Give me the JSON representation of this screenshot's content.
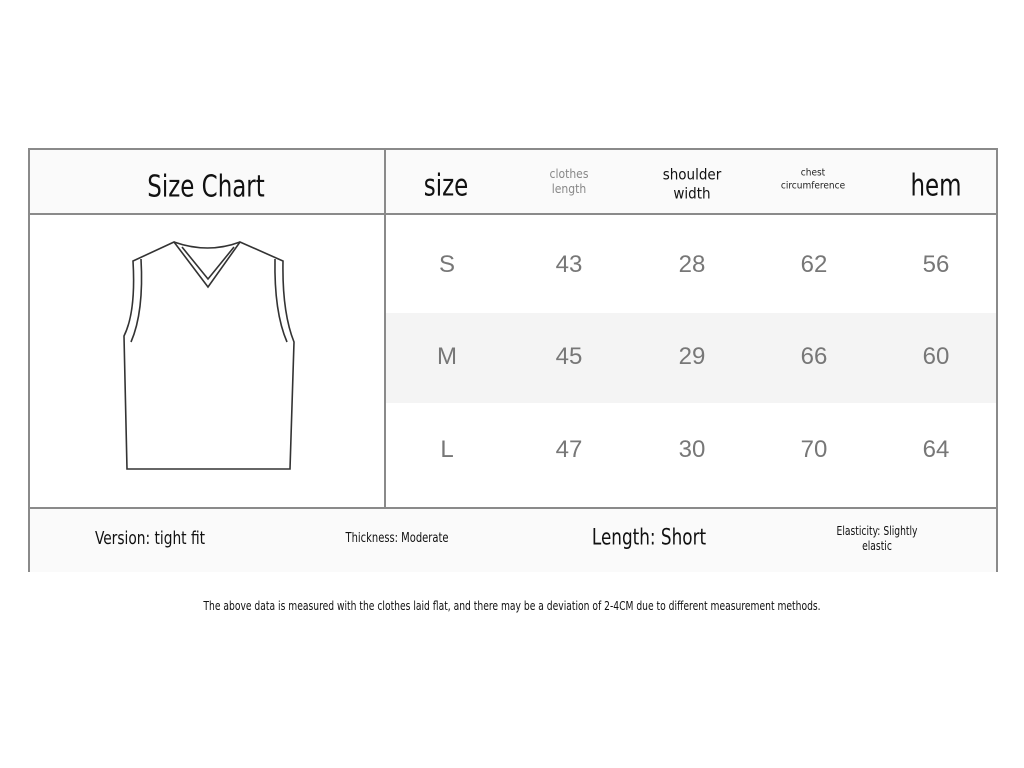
{
  "title": "Size Chart",
  "headers": {
    "size": "size",
    "clothes_length": [
      "clothes",
      "length"
    ],
    "shoulder_width": [
      "shoulder",
      "width"
    ],
    "chest": [
      "chest",
      "circumference"
    ],
    "hem": "hem"
  },
  "rows": [
    {
      "size": "S",
      "clothes_length": "43",
      "shoulder_width": "28",
      "chest": "62",
      "hem": "56"
    },
    {
      "size": "M",
      "clothes_length": "45",
      "shoulder_width": "29",
      "chest": "66",
      "hem": "60"
    },
    {
      "size": "L",
      "clothes_length": "47",
      "shoulder_width": "30",
      "chest": "70",
      "hem": "64"
    }
  ],
  "footer": {
    "version": "Version: tight fit",
    "thickness": "Thickness: Moderate",
    "length": "Length: Short",
    "elasticity": [
      "Elasticity: Slightly",
      "elastic"
    ]
  },
  "note": "The above data is measured with the clothes laid flat, and there may be a deviation of 2-4CM due to different measurement methods.",
  "colors": {
    "border": "#8a8a8a",
    "row_alt": "#f4f4f4",
    "value_text": "#777777"
  },
  "illustration": "vest-icon"
}
